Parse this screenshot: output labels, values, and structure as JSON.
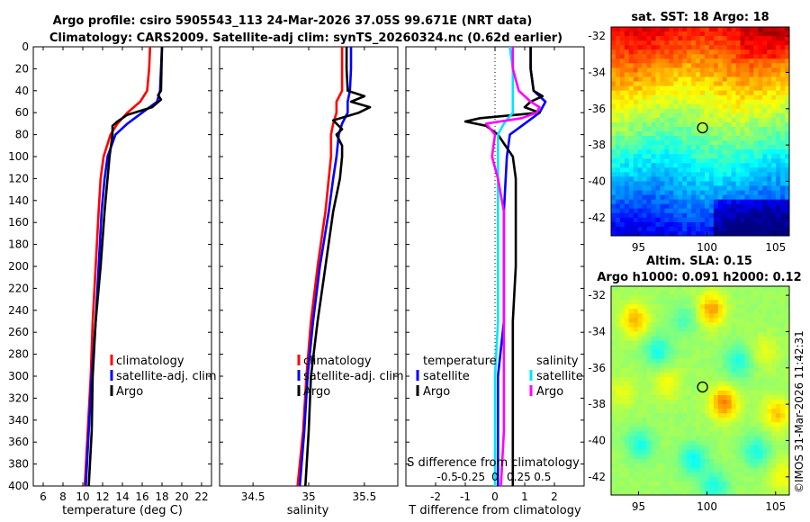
{
  "title": {
    "line1": "Argo profile: csiro 5905543_113 24-Mar-2026 37.05S 99.671E (NRT data)",
    "line2": "Climatology: CARS2009. Satellite-adj clim: synTS_20260324.nc (0.62d earlier)"
  },
  "colors": {
    "climatology": "#ff0000",
    "satellite": "#0000ff",
    "argo": "#000000",
    "sat_salinity": "#00e5ff",
    "argo_salinity_diff": "#ff00ff"
  },
  "depth_axis": {
    "ticks": [
      0,
      20,
      40,
      60,
      80,
      100,
      120,
      140,
      160,
      180,
      200,
      220,
      240,
      260,
      280,
      300,
      320,
      340,
      360,
      380,
      400
    ],
    "range": [
      0,
      400
    ]
  },
  "chart_data": [
    {
      "type": "line",
      "name": "temperature",
      "xlabel": "temperature (deg C)",
      "xlim": [
        5,
        23
      ],
      "ylim": [
        400,
        0
      ],
      "xticks": [
        6,
        8,
        10,
        12,
        14,
        16,
        18,
        20,
        22
      ],
      "legend": [
        "climatology",
        "satellite-adj. clim",
        "Argo"
      ],
      "series": [
        {
          "name": "climatology",
          "depth": [
            0,
            20,
            40,
            50,
            60,
            70,
            80,
            100,
            120,
            150,
            200,
            250,
            300,
            350,
            400
          ],
          "values": [
            16.8,
            16.7,
            16.5,
            15.8,
            14.5,
            13.5,
            12.8,
            12.1,
            11.8,
            11.6,
            11.3,
            11.0,
            10.8,
            10.5,
            10.2
          ]
        },
        {
          "name": "satellite-adj. clim",
          "depth": [
            0,
            20,
            40,
            50,
            60,
            70,
            80,
            100,
            120,
            150,
            200,
            250,
            300,
            350,
            400
          ],
          "values": [
            18.0,
            17.9,
            17.8,
            17.5,
            16.0,
            14.5,
            13.3,
            12.5,
            12.2,
            11.9,
            11.6,
            11.3,
            10.9,
            10.6,
            10.3
          ]
        },
        {
          "name": "Argo",
          "depth": [
            0,
            20,
            40,
            44,
            48,
            55,
            62,
            68,
            72,
            80,
            100,
            120,
            150,
            200,
            250,
            300,
            350,
            400
          ],
          "values": [
            18.0,
            17.95,
            17.9,
            17.6,
            17.9,
            17.0,
            14.5,
            13.5,
            13.0,
            13.0,
            12.7,
            12.5,
            12.2,
            11.8,
            11.3,
            11.0,
            10.9,
            10.6
          ]
        }
      ]
    },
    {
      "type": "line",
      "name": "salinity",
      "xlabel": "salinity",
      "xlim": [
        34.2,
        35.8
      ],
      "ylim": [
        400,
        0
      ],
      "xticks": [
        34.5,
        35,
        35.5
      ],
      "legend": [
        "climatology",
        "satellite-adj. clim",
        "Argo"
      ],
      "series": [
        {
          "name": "climatology",
          "depth": [
            0,
            20,
            40,
            50,
            60,
            70,
            80,
            100,
            120,
            150,
            200,
            250,
            300,
            350,
            400
          ],
          "values": [
            35.3,
            35.3,
            35.3,
            35.25,
            35.25,
            35.22,
            35.2,
            35.2,
            35.18,
            35.15,
            35.08,
            35.02,
            34.98,
            34.95,
            34.9
          ]
        },
        {
          "name": "satellite-adj. clim",
          "depth": [
            0,
            20,
            40,
            50,
            60,
            70,
            80,
            100,
            120,
            150,
            200,
            250,
            300,
            350,
            400
          ],
          "values": [
            35.38,
            35.38,
            35.37,
            35.35,
            35.35,
            35.3,
            35.27,
            35.25,
            35.22,
            35.18,
            35.1,
            35.04,
            34.99,
            34.96,
            34.92
          ]
        },
        {
          "name": "Argo",
          "depth": [
            0,
            20,
            40,
            45,
            50,
            55,
            60,
            67,
            75,
            80,
            90,
            100,
            120,
            150,
            200,
            250,
            300,
            350,
            400
          ],
          "values": [
            35.34,
            35.34,
            35.35,
            35.5,
            35.38,
            35.55,
            35.45,
            35.22,
            35.3,
            35.25,
            35.3,
            35.3,
            35.28,
            35.22,
            35.15,
            35.08,
            35.02,
            35.0,
            34.97
          ]
        }
      ]
    },
    {
      "type": "line",
      "name": "difference",
      "xlabel": "T difference from climatology",
      "xlabel2": "S difference from climatology",
      "xlim": [
        -3,
        3
      ],
      "ylim": [
        400,
        0
      ],
      "xticks": [
        -2,
        -1,
        0,
        1,
        2
      ],
      "xticks2_labels": [
        "-0.5",
        "-0.25",
        "0",
        "0.25",
        "0.5"
      ],
      "legend_t": {
        "header": "temperature",
        "items": [
          "satellite",
          "Argo"
        ]
      },
      "legend_s": {
        "header": "salinity",
        "items": [
          "satellite",
          "Argo"
        ]
      },
      "series": [
        {
          "name": "T satellite",
          "depth": [
            0,
            20,
            40,
            50,
            60,
            70,
            80,
            100,
            150,
            200,
            250,
            300,
            350,
            400
          ],
          "values": [
            1.2,
            1.2,
            1.3,
            1.7,
            1.5,
            1.0,
            0.5,
            0.4,
            0.3,
            0.3,
            0.3,
            0.1,
            0.1,
            0.1
          ]
        },
        {
          "name": "T Argo",
          "depth": [
            0,
            20,
            40,
            45,
            50,
            55,
            60,
            65,
            68,
            72,
            80,
            100,
            120,
            150,
            200,
            250,
            300,
            350,
            400
          ],
          "values": [
            1.2,
            1.2,
            1.3,
            1.6,
            1.2,
            1.0,
            1.5,
            -0.5,
            -1.0,
            -0.3,
            0.1,
            0.6,
            0.7,
            0.7,
            0.7,
            0.6,
            0.6,
            0.6,
            0.6
          ]
        },
        {
          "name": "S satellite",
          "depth": [
            0,
            20,
            40,
            60,
            70,
            80,
            100,
            150,
            200,
            250,
            300,
            350,
            400
          ],
          "values": [
            0.5,
            0.6,
            0.6,
            0.6,
            0.3,
            0.1,
            0.1,
            0.1,
            0.1,
            0.1,
            0.0,
            0.0,
            0.0
          ]
        },
        {
          "name": "S Argo",
          "depth": [
            0,
            20,
            40,
            50,
            55,
            60,
            65,
            70,
            80,
            100,
            120,
            150,
            200,
            250,
            300,
            350,
            400
          ],
          "values": [
            0.6,
            0.6,
            0.8,
            1.2,
            1.5,
            1.4,
            0.9,
            -0.3,
            0.0,
            -0.1,
            0.1,
            0.3,
            0.3,
            0.3,
            0.3,
            0.3,
            0.2
          ]
        }
      ]
    },
    {
      "type": "heatmap",
      "name": "sst_map",
      "title": "sat. SST: 18 Argo: 18",
      "lon_range": [
        93,
        106
      ],
      "lat_range": [
        -43,
        -31.5
      ],
      "xticks": [
        95,
        100,
        105
      ],
      "yticks": [
        -32,
        -34,
        -36,
        -38,
        -40,
        -42
      ],
      "float_position": {
        "lon": 99.671,
        "lat": -37.05
      }
    },
    {
      "type": "heatmap",
      "name": "sla_map",
      "title": "Altim. SLA: 0.15",
      "subtitle": "Argo h1000: 0.091 h2000: 0.12",
      "lon_range": [
        93,
        106
      ],
      "lat_range": [
        -43,
        -31.5
      ],
      "xticks": [
        95,
        100,
        105
      ],
      "yticks": [
        -32,
        -34,
        -36,
        -38,
        -40,
        -42
      ],
      "float_position": {
        "lon": 99.671,
        "lat": -37.05
      }
    }
  ],
  "credit": "©IMOS 31-Mar-2026 11:42:31"
}
